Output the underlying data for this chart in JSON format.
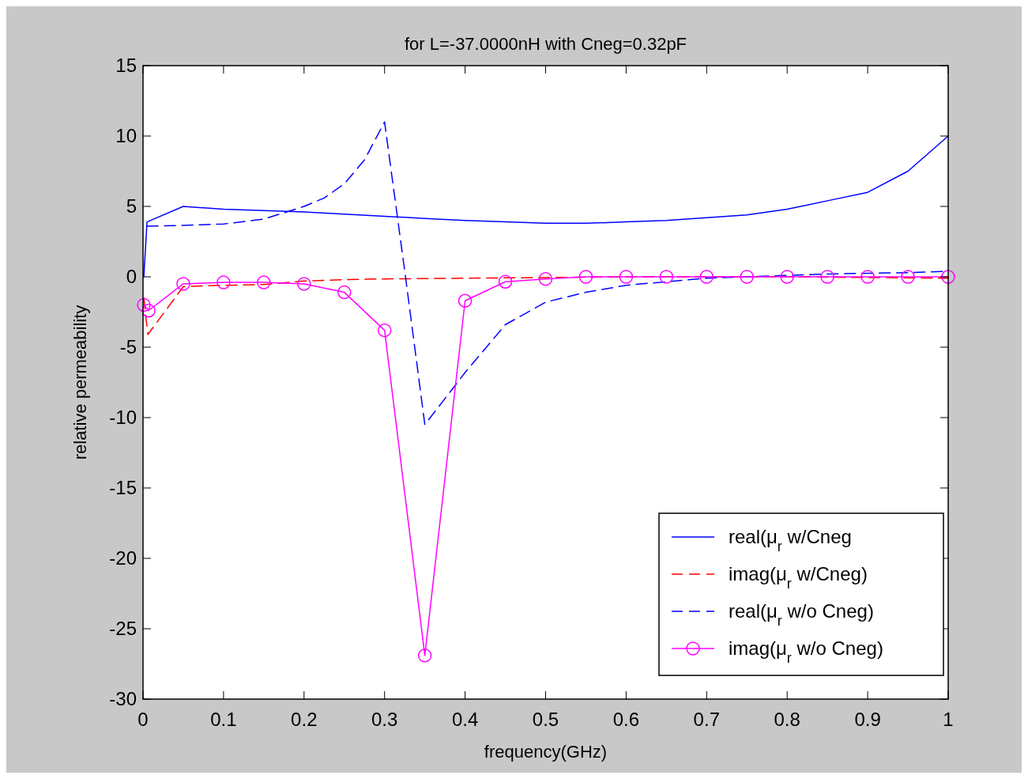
{
  "chart_data": {
    "type": "line",
    "title": "for L=-37.0000nH with Cneg=0.32pF",
    "xlabel": "frequency(GHz)",
    "ylabel": "relative permeability",
    "xlim": [
      0,
      1
    ],
    "xticks": [
      0,
      0.1,
      0.2,
      0.3,
      0.4,
      0.5,
      0.6,
      0.7,
      0.8,
      0.9,
      1
    ],
    "ylim": [
      -30,
      15
    ],
    "yticks": [
      -30,
      -25,
      -20,
      -15,
      -10,
      -5,
      0,
      5,
      10,
      15
    ],
    "grid": false,
    "legend": "bottom right",
    "series": [
      {
        "name": "real(μ$_{r}$ w/Cneg",
        "color": "#0000ff",
        "line_style": "solid",
        "marker": "none",
        "x": [
          0.001,
          0.005,
          0.05,
          0.1,
          0.15,
          0.2,
          0.25,
          0.3,
          0.35,
          0.4,
          0.45,
          0.5,
          0.55,
          0.6,
          0.65,
          0.7,
          0.75,
          0.8,
          0.85,
          0.9,
          0.95,
          1
        ],
        "values": [
          0,
          3.9,
          5.0,
          4.8,
          4.7,
          4.6,
          4.45,
          4.3,
          4.15,
          4.0,
          3.9,
          3.8,
          3.8,
          3.9,
          4.0,
          4.2,
          4.4,
          4.8,
          5.4,
          6.0,
          7.5,
          10.0
        ]
      },
      {
        "name": "imag(μ$_{r}$ w/Cneg)",
        "color": "#ff0000",
        "line_style": "dashed",
        "marker": "none",
        "x": [
          0.001,
          0.006,
          0.05,
          0.1,
          0.15,
          0.2,
          0.25,
          0.3,
          0.4,
          0.5,
          0.6,
          0.7,
          0.8,
          0.9,
          1
        ],
        "values": [
          -1.5,
          -4.1,
          -0.7,
          -0.6,
          -0.55,
          -0.3,
          -0.2,
          -0.15,
          -0.1,
          -0.05,
          0,
          0,
          0,
          -0.05,
          -0.1
        ]
      },
      {
        "name": "real(μ$_{r}$ w/o Cneg)",
        "color": "#0000ff",
        "line_style": "dashed",
        "marker": "none",
        "x": [
          0.005,
          0.05,
          0.1,
          0.15,
          0.2,
          0.225,
          0.25,
          0.275,
          0.3,
          0.326,
          0.35,
          0.4,
          0.45,
          0.5,
          0.55,
          0.6,
          0.65,
          0.7,
          0.75,
          0.8,
          0.85,
          0.9,
          0.95,
          1
        ],
        "values": [
          3.6,
          3.65,
          3.75,
          4.1,
          5.0,
          5.6,
          6.6,
          8.3,
          11.0,
          0,
          -10.5,
          -6.8,
          -3.4,
          -1.8,
          -1.1,
          -0.6,
          -0.35,
          -0.1,
          0,
          0.1,
          0.2,
          0.25,
          0.3,
          0.4
        ]
      },
      {
        "name": "imag(μ$_{r}$ w/o Cneg)",
        "color": "#ff00ff",
        "line_style": "solid",
        "marker": "circle",
        "x": [
          0.001,
          0.007,
          0.05,
          0.1,
          0.15,
          0.2,
          0.25,
          0.3,
          0.35,
          0.4,
          0.45,
          0.5,
          0.55,
          0.6,
          0.65,
          0.7,
          0.75,
          0.8,
          0.85,
          0.9,
          0.95,
          1
        ],
        "values": [
          -2.0,
          -2.4,
          -0.5,
          -0.4,
          -0.4,
          -0.5,
          -1.1,
          -3.8,
          -26.9,
          -1.7,
          -0.35,
          -0.15,
          0,
          0,
          0,
          0,
          0,
          0,
          0,
          0,
          0,
          0
        ]
      }
    ]
  }
}
